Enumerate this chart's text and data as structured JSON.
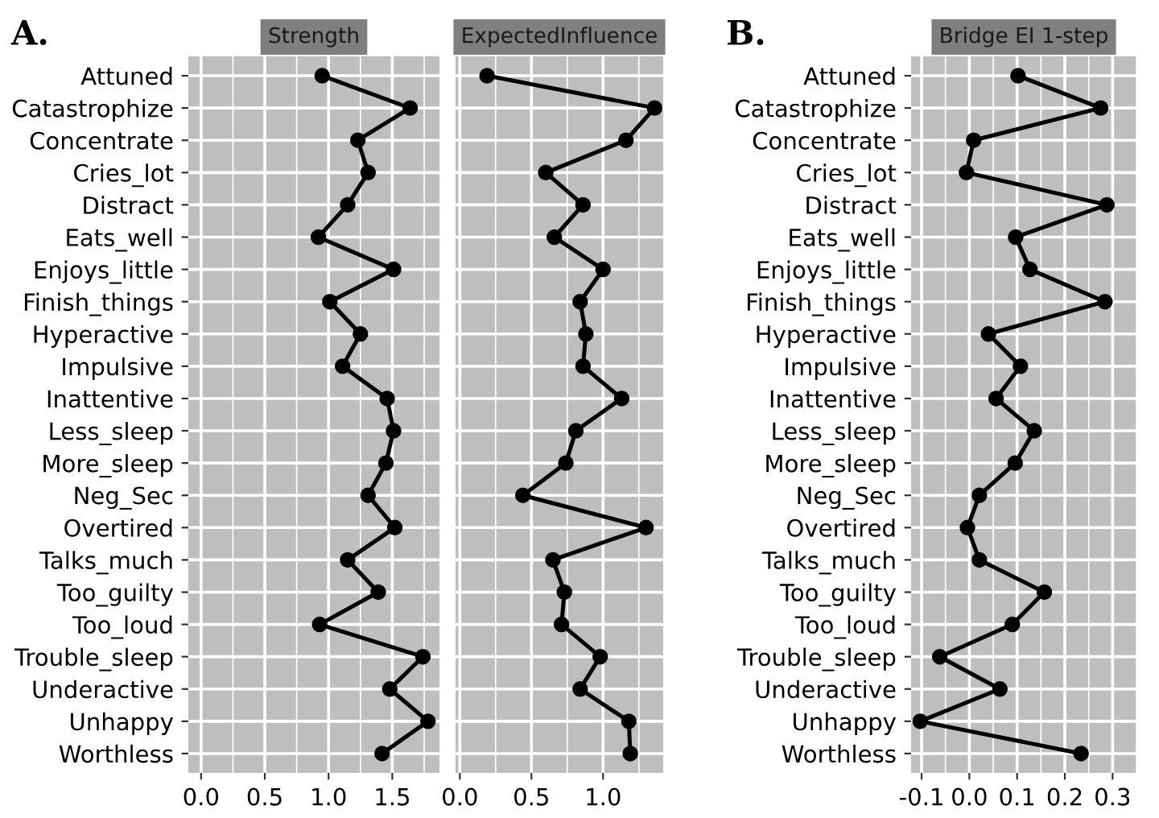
{
  "chart_data": [
    {
      "type": "line",
      "orientation": "horizontal",
      "title": "Strength",
      "annotations": [
        "A."
      ],
      "marker": "circle",
      "grid": true,
      "color": "#000000",
      "categories": [
        "Attuned",
        "Catastrophize",
        "Concentrate",
        "Cries_lot",
        "Distract",
        "Eats_well",
        "Enjoys_little",
        "Finish_things",
        "Hyperactive",
        "Impulsive",
        "Inattentive",
        "Less_sleep",
        "More_sleep",
        "Neg_Sec",
        "Overtired",
        "Talks_much",
        "Too_guilty",
        "Too_loud",
        "Trouble_sleep",
        "Underactive",
        "Unhappy",
        "Worthless"
      ],
      "values": [
        0.95,
        1.64,
        1.23,
        1.31,
        1.15,
        0.92,
        1.51,
        1.01,
        1.25,
        1.11,
        1.46,
        1.51,
        1.45,
        1.31,
        1.52,
        1.15,
        1.39,
        0.93,
        1.74,
        1.48,
        1.78,
        1.42
      ],
      "xlim": [
        -0.1,
        1.87
      ],
      "xticks": [
        {
          "value": 0,
          "label": "0.0"
        },
        {
          "value": 0.5,
          "label": "0.5"
        },
        {
          "value": 1,
          "label": "1.0"
        },
        {
          "value": 1.5,
          "label": "1.5"
        }
      ]
    },
    {
      "type": "line",
      "orientation": "horizontal",
      "title": "ExpectedInfluence",
      "marker": "circle",
      "grid": true,
      "color": "#000000",
      "tick_labels": "x",
      "categories": [
        null,
        null,
        null,
        null,
        null,
        null,
        null,
        null,
        null,
        null,
        null,
        null,
        null,
        null,
        null,
        null,
        null,
        null,
        null,
        null,
        null,
        null
      ],
      "values": [
        0.19,
        1.36,
        1.16,
        0.6,
        0.86,
        0.66,
        1.0,
        0.84,
        0.88,
        0.86,
        1.13,
        0.81,
        0.74,
        0.44,
        1.3,
        0.65,
        0.73,
        0.71,
        0.98,
        0.84,
        1.18,
        1.19
      ],
      "xlim": [
        -0.03,
        1.42
      ],
      "xticks": [
        {
          "value": 0,
          "label": "0.0"
        },
        {
          "value": 0.5,
          "label": "0.5"
        },
        {
          "value": 1,
          "label": "1.0"
        }
      ]
    },
    {
      "type": "line",
      "orientation": "horizontal",
      "title": "Bridge EI 1-step",
      "annotations": [
        "B."
      ],
      "marker": "circle",
      "grid": true,
      "color": "#000000",
      "categories": [
        "Attuned",
        "Catastrophize",
        "Concentrate",
        "Cries_lot",
        "Distract",
        "Eats_well",
        "Enjoys_little",
        "Finish_things",
        "Hyperactive",
        "Impulsive",
        "Inattentive",
        "Less_sleep",
        "More_sleep",
        "Neg_Sec",
        "Overtired",
        "Talks_much",
        "Too_guilty",
        "Too_loud",
        "Trouble_sleep",
        "Underactive",
        "Unhappy",
        "Worthless"
      ],
      "values": [
        0.102,
        0.275,
        0.009,
        -0.006,
        0.288,
        0.097,
        0.127,
        0.284,
        0.04,
        0.107,
        0.056,
        0.136,
        0.096,
        0.021,
        -0.004,
        0.021,
        0.157,
        0.09,
        -0.062,
        0.064,
        -0.103,
        0.234
      ],
      "xlim": [
        -0.122,
        0.306
      ],
      "xticks": [
        {
          "value": -0.1,
          "label": "-0.1"
        },
        {
          "value": 0,
          "label": "0.0"
        },
        {
          "value": 0.1,
          "label": "0.1"
        },
        {
          "value": 0.2,
          "label": "0.2"
        },
        {
          "value": 0.3,
          "label": "0.3"
        }
      ]
    }
  ]
}
